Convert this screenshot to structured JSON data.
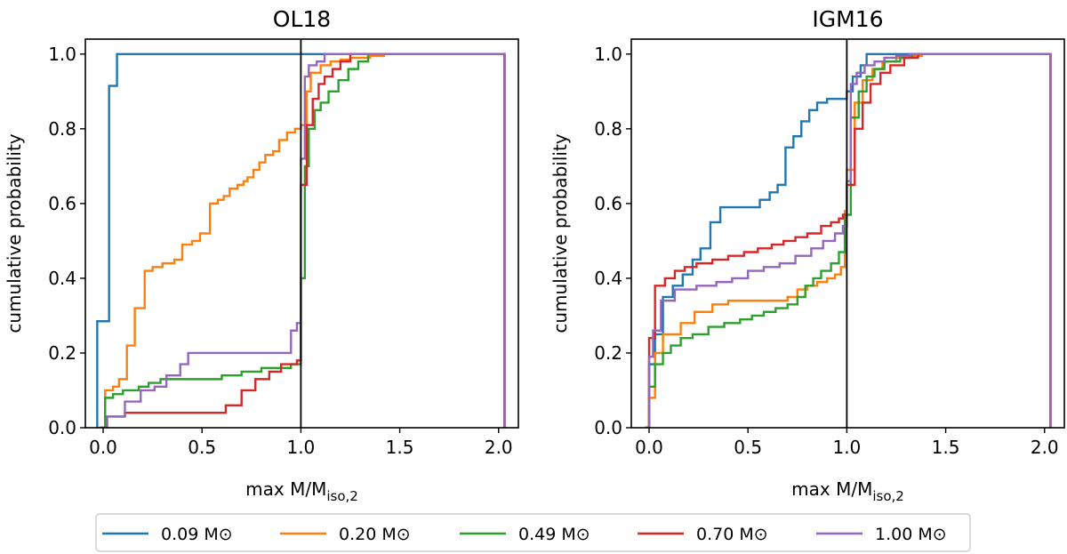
{
  "chart_data": [
    {
      "type": "line",
      "step": true,
      "title": "OL18",
      "xlabel_main": "max M/M",
      "xlabel_sub": "iso,2",
      "ylabel": "cumulative probability",
      "xlim": [
        -0.09,
        2.1
      ],
      "ylim": [
        0.0,
        1.04
      ],
      "xticks": [
        0.0,
        0.5,
        1.0,
        1.5,
        2.0
      ],
      "xtick_labels": [
        "0.0",
        "0.5",
        "1.0",
        "1.5",
        "2.0"
      ],
      "yticks": [
        0.0,
        0.2,
        0.4,
        0.6,
        0.8,
        1.0
      ],
      "ytick_labels": [
        "0.0",
        "0.2",
        "0.4",
        "0.6",
        "0.8",
        "1.0"
      ],
      "vline_x": 1.0,
      "series": [
        {
          "name": "0.09 M⊙",
          "color": "#1f77b4",
          "x": [
            -0.03,
            -0.03,
            0.03,
            0.03,
            0.07,
            2.03,
            2.03
          ],
          "y": [
            0.0,
            0.285,
            0.285,
            0.915,
            1.0,
            1.0,
            0.0
          ]
        },
        {
          "name": "0.20 M⊙",
          "color": "#ff7f0e",
          "x": [
            -0.02,
            0.01,
            0.05,
            0.08,
            0.12,
            0.16,
            0.21,
            0.25,
            0.3,
            0.36,
            0.4,
            0.45,
            0.49,
            0.54,
            0.58,
            0.61,
            0.64,
            0.68,
            0.71,
            0.73,
            0.76,
            0.79,
            0.82,
            0.86,
            0.89,
            0.93,
            0.97,
            1.0,
            1.03,
            1.05,
            1.1,
            1.15,
            1.2,
            1.25,
            1.35,
            1.42,
            2.03,
            2.03
          ],
          "y": [
            0.0,
            0.1,
            0.11,
            0.13,
            0.22,
            0.32,
            0.42,
            0.43,
            0.44,
            0.45,
            0.49,
            0.5,
            0.52,
            0.6,
            0.61,
            0.62,
            0.64,
            0.65,
            0.66,
            0.67,
            0.69,
            0.71,
            0.73,
            0.74,
            0.77,
            0.79,
            0.8,
            0.81,
            0.9,
            0.95,
            0.97,
            0.98,
            0.985,
            0.99,
            0.995,
            1.0,
            1.0,
            0.0
          ]
        },
        {
          "name": "0.49 M⊙",
          "color": "#2ca02c",
          "x": [
            -0.02,
            0.01,
            0.05,
            0.1,
            0.18,
            0.23,
            0.29,
            0.37,
            0.6,
            0.7,
            0.8,
            0.85,
            0.95,
            1.0,
            1.02,
            1.04,
            1.07,
            1.1,
            1.14,
            1.19,
            1.24,
            1.29,
            1.34,
            2.03,
            2.03
          ],
          "y": [
            0.0,
            0.08,
            0.09,
            0.1,
            0.11,
            0.12,
            0.13,
            0.13,
            0.14,
            0.15,
            0.16,
            0.16,
            0.17,
            0.4,
            0.7,
            0.8,
            0.85,
            0.87,
            0.9,
            0.93,
            0.96,
            0.98,
            1.0,
            1.0,
            0.0
          ]
        },
        {
          "name": "0.70 M⊙",
          "color": "#d62728",
          "x": [
            -0.01,
            0.02,
            0.11,
            0.3,
            0.4,
            0.5,
            0.62,
            0.7,
            0.77,
            0.84,
            0.9,
            0.94,
            0.98,
            1.0,
            1.03,
            1.06,
            1.09,
            1.12,
            1.16,
            1.2,
            1.25,
            2.03,
            2.03
          ],
          "y": [
            0.0,
            0.03,
            0.04,
            0.04,
            0.04,
            0.04,
            0.06,
            0.1,
            0.13,
            0.15,
            0.17,
            0.17,
            0.18,
            0.65,
            0.81,
            0.88,
            0.92,
            0.94,
            0.96,
            0.98,
            1.0,
            1.0,
            0.0
          ]
        },
        {
          "name": "1.00 M⊙",
          "color": "#9467bd",
          "x": [
            -0.01,
            0.02,
            0.11,
            0.19,
            0.26,
            0.32,
            0.39,
            0.43,
            0.59,
            0.67,
            0.73,
            0.77,
            0.8,
            0.95,
            0.98,
            1.0,
            1.02,
            1.04,
            1.08,
            1.12,
            1.16,
            2.03,
            2.03
          ],
          "y": [
            0.0,
            0.03,
            0.07,
            0.1,
            0.11,
            0.14,
            0.17,
            0.2,
            0.2,
            0.2,
            0.2,
            0.2,
            0.2,
            0.26,
            0.28,
            0.72,
            0.94,
            0.97,
            0.98,
            1.0,
            1.0,
            1.0,
            0.0
          ]
        }
      ]
    },
    {
      "type": "line",
      "step": true,
      "title": "IGM16",
      "xlabel_main": "max M/M",
      "xlabel_sub": "iso,2",
      "ylabel": "cumulative probability",
      "xlim": [
        -0.09,
        2.1
      ],
      "ylim": [
        0.0,
        1.04
      ],
      "xticks": [
        0.0,
        0.5,
        1.0,
        1.5,
        2.0
      ],
      "xtick_labels": [
        "0.0",
        "0.5",
        "1.0",
        "1.5",
        "2.0"
      ],
      "yticks": [
        0.0,
        0.2,
        0.4,
        0.6,
        0.8,
        1.0
      ],
      "ytick_labels": [
        "0.0",
        "0.2",
        "0.4",
        "0.6",
        "0.8",
        "1.0"
      ],
      "vline_x": 1.0,
      "series": [
        {
          "name": "0.09 M⊙",
          "color": "#1f77b4",
          "x": [
            -0.02,
            0.0,
            0.03,
            0.07,
            0.12,
            0.17,
            0.22,
            0.26,
            0.31,
            0.36,
            0.45,
            0.56,
            0.61,
            0.65,
            0.69,
            0.73,
            0.77,
            0.81,
            0.85,
            0.9,
            0.95,
            1.0,
            1.03,
            1.07,
            1.1,
            1.16,
            2.03,
            2.03
          ],
          "y": [
            0.0,
            0.17,
            0.25,
            0.35,
            0.38,
            0.41,
            0.45,
            0.48,
            0.55,
            0.59,
            0.59,
            0.61,
            0.63,
            0.65,
            0.75,
            0.78,
            0.82,
            0.85,
            0.87,
            0.88,
            0.88,
            0.9,
            0.94,
            0.97,
            1.0,
            1.0,
            1.0,
            0.0
          ]
        },
        {
          "name": "0.20 M⊙",
          "color": "#ff7f0e",
          "x": [
            -0.02,
            0.0,
            0.03,
            0.07,
            0.16,
            0.23,
            0.32,
            0.4,
            0.5,
            0.6,
            0.7,
            0.75,
            0.8,
            0.85,
            0.9,
            0.94,
            0.97,
            0.99,
            1.0,
            1.04,
            1.08,
            1.13,
            1.18,
            1.25,
            1.3,
            1.38,
            2.03,
            2.03
          ],
          "y": [
            0.0,
            0.08,
            0.2,
            0.25,
            0.28,
            0.31,
            0.33,
            0.34,
            0.34,
            0.34,
            0.35,
            0.37,
            0.38,
            0.39,
            0.4,
            0.41,
            0.43,
            0.58,
            0.69,
            0.87,
            0.93,
            0.96,
            0.98,
            0.99,
            0.995,
            1.0,
            1.0,
            0.0
          ]
        },
        {
          "name": "0.49 M⊙",
          "color": "#2ca02c",
          "x": [
            -0.02,
            0.0,
            0.03,
            0.07,
            0.11,
            0.16,
            0.22,
            0.3,
            0.38,
            0.46,
            0.52,
            0.58,
            0.64,
            0.7,
            0.75,
            0.79,
            0.83,
            0.87,
            0.92,
            0.96,
            0.99,
            1.02,
            1.06,
            1.1,
            1.14,
            1.19,
            1.27,
            1.33,
            2.03,
            2.03
          ],
          "y": [
            0.0,
            0.11,
            0.17,
            0.2,
            0.22,
            0.24,
            0.25,
            0.27,
            0.28,
            0.29,
            0.3,
            0.31,
            0.32,
            0.33,
            0.35,
            0.38,
            0.4,
            0.42,
            0.44,
            0.47,
            0.57,
            0.83,
            0.9,
            0.94,
            0.96,
            0.98,
            0.99,
            1.0,
            1.0,
            0.0
          ]
        },
        {
          "name": "0.70 M⊙",
          "color": "#d62728",
          "x": [
            -0.02,
            0.0,
            0.03,
            0.08,
            0.13,
            0.18,
            0.24,
            0.32,
            0.4,
            0.48,
            0.55,
            0.62,
            0.68,
            0.74,
            0.8,
            0.87,
            0.92,
            0.96,
            0.98,
            1.0,
            1.04,
            1.08,
            1.12,
            1.17,
            1.22,
            1.29,
            1.36,
            2.03,
            2.03
          ],
          "y": [
            0.0,
            0.24,
            0.38,
            0.4,
            0.42,
            0.43,
            0.44,
            0.45,
            0.46,
            0.47,
            0.48,
            0.49,
            0.5,
            0.51,
            0.52,
            0.54,
            0.55,
            0.56,
            0.57,
            0.65,
            0.8,
            0.87,
            0.92,
            0.95,
            0.97,
            0.99,
            1.0,
            1.0,
            0.0
          ]
        },
        {
          "name": "1.00 M⊙",
          "color": "#9467bd",
          "x": [
            -0.02,
            0.0,
            0.02,
            0.06,
            0.13,
            0.24,
            0.34,
            0.42,
            0.5,
            0.58,
            0.66,
            0.74,
            0.82,
            0.88,
            0.94,
            0.98,
            1.0,
            1.02,
            1.05,
            1.09,
            1.14,
            1.19,
            1.25,
            1.32,
            2.03,
            2.03
          ],
          "y": [
            0.0,
            0.19,
            0.26,
            0.34,
            0.37,
            0.38,
            0.39,
            0.4,
            0.42,
            0.43,
            0.44,
            0.46,
            0.48,
            0.5,
            0.52,
            0.54,
            0.66,
            0.92,
            0.95,
            0.97,
            0.98,
            0.99,
            0.995,
            1.0,
            1.0,
            0.0
          ]
        }
      ]
    }
  ],
  "legend": {
    "placement": "bottom-center",
    "items": [
      {
        "label": "0.09 M⊙",
        "color": "#1f77b4"
      },
      {
        "label": "0.20 M⊙",
        "color": "#ff7f0e"
      },
      {
        "label": "0.49 M⊙",
        "color": "#2ca02c"
      },
      {
        "label": "0.70 M⊙",
        "color": "#d62728"
      },
      {
        "label": "1.00 M⊙",
        "color": "#9467bd"
      }
    ]
  }
}
